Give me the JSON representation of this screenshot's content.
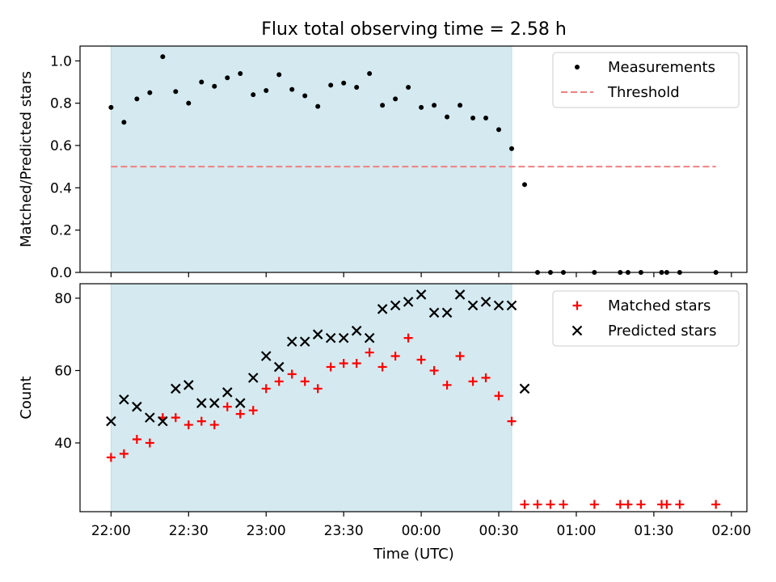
{
  "chart_data": {
    "title": "Flux total observing time = 2.58 h",
    "x_tick_labels": [
      "22:00",
      "22:30",
      "23:00",
      "23:30",
      "00:00",
      "00:30",
      "01:00",
      "01:30",
      "02:00"
    ],
    "x_ticks_min": [
      0,
      30,
      60,
      90,
      120,
      150,
      180,
      210,
      240
    ],
    "xlim_min": [
      -12,
      246
    ],
    "xlabel": "Time (UTC)",
    "shade_range_min": [
      0,
      155
    ],
    "shade_color": "#d4eaf0",
    "panels": [
      {
        "type": "scatter",
        "ylabel": "Matched/Predicted stars",
        "ylim": [
          0,
          1.07
        ],
        "yticks": [
          0.0,
          0.2,
          0.4,
          0.6,
          0.8,
          1.0
        ],
        "ytick_labels": [
          "0.0",
          "0.2",
          "0.4",
          "0.6",
          "0.8",
          "1.0"
        ],
        "legend_position": "top-right",
        "series": [
          {
            "name": "Measurements",
            "marker": "dot",
            "color": "#000000",
            "x": [
              0,
              5,
              10,
              15,
              20,
              25,
              30,
              35,
              40,
              45,
              50,
              55,
              60,
              65,
              70,
              75,
              80,
              85,
              90,
              95,
              100,
              105,
              110,
              115,
              120,
              125,
              130,
              135,
              140,
              145,
              150,
              155,
              160,
              165,
              170,
              175,
              187,
              197,
              200,
              205,
              213,
              215,
              220,
              234
            ],
            "y": [
              0.78,
              0.71,
              0.82,
              0.85,
              1.02,
              0.855,
              0.8,
              0.9,
              0.88,
              0.92,
              0.94,
              0.84,
              0.86,
              0.935,
              0.865,
              0.835,
              0.785,
              0.885,
              0.895,
              0.875,
              0.94,
              0.79,
              0.82,
              0.875,
              0.78,
              0.79,
              0.735,
              0.79,
              0.73,
              0.73,
              0.675,
              0.585,
              0.415,
              0,
              0,
              0,
              0,
              0,
              0,
              0,
              0,
              0,
              0,
              0
            ]
          },
          {
            "name": "Threshold",
            "marker": "dashed-line",
            "color": "#f08080",
            "x": [
              0,
              234
            ],
            "y": [
              0.5,
              0.5
            ]
          }
        ]
      },
      {
        "type": "scatter",
        "ylabel": "Count",
        "ylim": [
          21,
          84
        ],
        "yticks": [
          40,
          60,
          80
        ],
        "ytick_labels": [
          "40",
          "60",
          "80"
        ],
        "legend_position": "top-right",
        "series": [
          {
            "name": "Matched stars",
            "marker": "plus",
            "color": "#ff0000",
            "x": [
              0,
              5,
              10,
              15,
              20,
              25,
              30,
              35,
              40,
              45,
              50,
              55,
              60,
              65,
              70,
              75,
              80,
              85,
              90,
              95,
              100,
              105,
              110,
              115,
              120,
              125,
              130,
              135,
              140,
              145,
              150,
              155,
              160,
              165,
              170,
              175,
              187,
              197,
              200,
              205,
              213,
              215,
              220,
              234
            ],
            "y": [
              36,
              37,
              41,
              40,
              47,
              47,
              45,
              46,
              45,
              50,
              48,
              49,
              55,
              57,
              59,
              57,
              55,
              61,
              62,
              62,
              65,
              61,
              64,
              69,
              63,
              60,
              56,
              64,
              57,
              58,
              53,
              46,
              23,
              23,
              23,
              23,
              23,
              23,
              23,
              23,
              23,
              23,
              23,
              23
            ]
          },
          {
            "name": "Predicted stars",
            "marker": "x",
            "color": "#000000",
            "x": [
              0,
              5,
              10,
              15,
              20,
              25,
              30,
              35,
              40,
              45,
              50,
              55,
              60,
              65,
              70,
              75,
              80,
              85,
              90,
              95,
              100,
              105,
              110,
              115,
              120,
              125,
              130,
              135,
              140,
              145,
              150,
              155,
              160
            ],
            "y": [
              46,
              52,
              50,
              47,
              46,
              55,
              56,
              51,
              51,
              54,
              51,
              58,
              64,
              61,
              68,
              68,
              70,
              69,
              69,
              71,
              69,
              77,
              78,
              79,
              81,
              76,
              76,
              81,
              78,
              79,
              78,
              78,
              55
            ]
          }
        ]
      }
    ]
  }
}
